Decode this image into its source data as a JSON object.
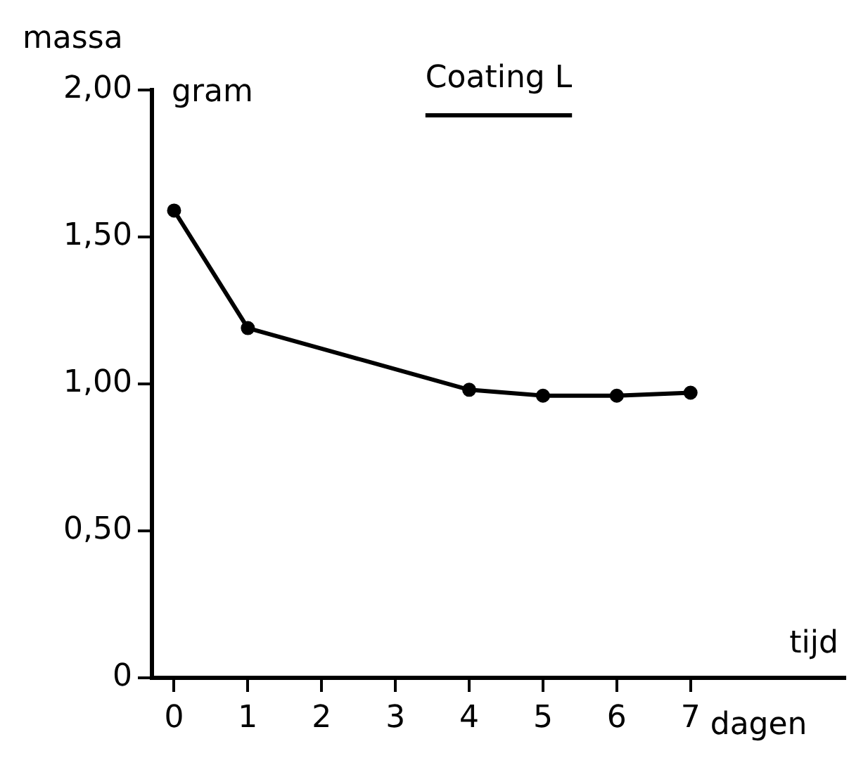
{
  "chart_data": {
    "type": "line",
    "title": "Coating L",
    "ylabel": "massa",
    "xlabel": "tijd",
    "annotations": [
      "gram",
      "dagen"
    ],
    "x": [
      0,
      1,
      4,
      5,
      6,
      7
    ],
    "series": [
      {
        "color": "#000000",
        "values": [
          1.59,
          1.19,
          0.98,
          0.96,
          0.96,
          0.97
        ]
      }
    ],
    "xlim": [
      -0.3,
      9.1
    ],
    "xticks": [
      0,
      1,
      2,
      3,
      4,
      5,
      6,
      7
    ],
    "ylim": [
      0,
      2
    ],
    "yticks": [
      {
        "value": 0,
        "label": "0"
      },
      {
        "value": 0.5,
        "label": "0,50"
      },
      {
        "value": 1,
        "label": "1,00"
      },
      {
        "value": 1.5,
        "label": "1,50"
      },
      {
        "value": 2,
        "label": "2,00"
      }
    ],
    "grid": false,
    "legend": false,
    "marker": "circle",
    "line_style": "solid"
  }
}
